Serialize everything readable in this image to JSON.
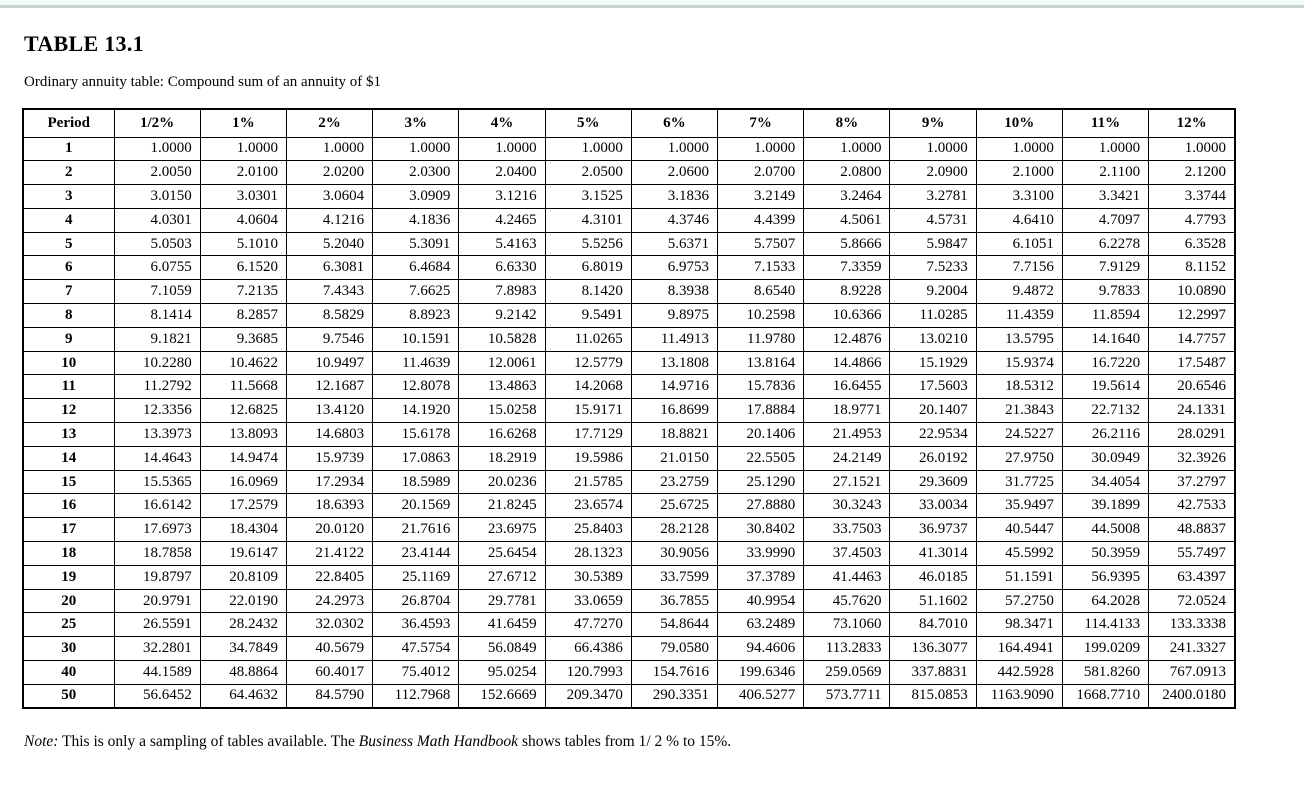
{
  "theme": {
    "accent_bar_color": "#f1fbf7",
    "accent_line_color": "#c3d2ce",
    "text_color": "#000000"
  },
  "page": {
    "title": "TABLE 13.1",
    "subtitle": "Ordinary annuity table: Compound sum of an annuity of $1",
    "note_label": "Note:",
    "note_text_1": " This is only a sampling of tables available. The ",
    "note_italic": "Business Math Handbook",
    "note_text_2": " shows tables from 1/ 2 % to 15%."
  },
  "table": {
    "headers": [
      "Period",
      "1/2%",
      "1%",
      "2%",
      "3%",
      "4%",
      "5%",
      "6%",
      "7%",
      "8%",
      "9%",
      "10%",
      "11%",
      "12%"
    ],
    "rows": [
      [
        "1",
        "1.0000",
        "1.0000",
        "1.0000",
        "1.0000",
        "1.0000",
        "1.0000",
        "1.0000",
        "1.0000",
        "1.0000",
        "1.0000",
        "1.0000",
        "1.0000",
        "1.0000"
      ],
      [
        "2",
        "2.0050",
        "2.0100",
        "2.0200",
        "2.0300",
        "2.0400",
        "2.0500",
        "2.0600",
        "2.0700",
        "2.0800",
        "2.0900",
        "2.1000",
        "2.1100",
        "2.1200"
      ],
      [
        "3",
        "3.0150",
        "3.0301",
        "3.0604",
        "3.0909",
        "3.1216",
        "3.1525",
        "3.1836",
        "3.2149",
        "3.2464",
        "3.2781",
        "3.3100",
        "3.3421",
        "3.3744"
      ],
      [
        "4",
        "4.0301",
        "4.0604",
        "4.1216",
        "4.1836",
        "4.2465",
        "4.3101",
        "4.3746",
        "4.4399",
        "4.5061",
        "4.5731",
        "4.6410",
        "4.7097",
        "4.7793"
      ],
      [
        "5",
        "5.0503",
        "5.1010",
        "5.2040",
        "5.3091",
        "5.4163",
        "5.5256",
        "5.6371",
        "5.7507",
        "5.8666",
        "5.9847",
        "6.1051",
        "6.2278",
        "6.3528"
      ],
      [
        "6",
        "6.0755",
        "6.1520",
        "6.3081",
        "6.4684",
        "6.6330",
        "6.8019",
        "6.9753",
        "7.1533",
        "7.3359",
        "7.5233",
        "7.7156",
        "7.9129",
        "8.1152"
      ],
      [
        "7",
        "7.1059",
        "7.2135",
        "7.4343",
        "7.6625",
        "7.8983",
        "8.1420",
        "8.3938",
        "8.6540",
        "8.9228",
        "9.2004",
        "9.4872",
        "9.7833",
        "10.0890"
      ],
      [
        "8",
        "8.1414",
        "8.2857",
        "8.5829",
        "8.8923",
        "9.2142",
        "9.5491",
        "9.8975",
        "10.2598",
        "10.6366",
        "11.0285",
        "11.4359",
        "11.8594",
        "12.2997"
      ],
      [
        "9",
        "9.1821",
        "9.3685",
        "9.7546",
        "10.1591",
        "10.5828",
        "11.0265",
        "11.4913",
        "11.9780",
        "12.4876",
        "13.0210",
        "13.5795",
        "14.1640",
        "14.7757"
      ],
      [
        "10",
        "10.2280",
        "10.4622",
        "10.9497",
        "11.4639",
        "12.0061",
        "12.5779",
        "13.1808",
        "13.8164",
        "14.4866",
        "15.1929",
        "15.9374",
        "16.7220",
        "17.5487"
      ],
      [
        "11",
        "11.2792",
        "11.5668",
        "12.1687",
        "12.8078",
        "13.4863",
        "14.2068",
        "14.9716",
        "15.7836",
        "16.6455",
        "17.5603",
        "18.5312",
        "19.5614",
        "20.6546"
      ],
      [
        "12",
        "12.3356",
        "12.6825",
        "13.4120",
        "14.1920",
        "15.0258",
        "15.9171",
        "16.8699",
        "17.8884",
        "18.9771",
        "20.1407",
        "21.3843",
        "22.7132",
        "24.1331"
      ],
      [
        "13",
        "13.3973",
        "13.8093",
        "14.6803",
        "15.6178",
        "16.6268",
        "17.7129",
        "18.8821",
        "20.1406",
        "21.4953",
        "22.9534",
        "24.5227",
        "26.2116",
        "28.0291"
      ],
      [
        "14",
        "14.4643",
        "14.9474",
        "15.9739",
        "17.0863",
        "18.2919",
        "19.5986",
        "21.0150",
        "22.5505",
        "24.2149",
        "26.0192",
        "27.9750",
        "30.0949",
        "32.3926"
      ],
      [
        "15",
        "15.5365",
        "16.0969",
        "17.2934",
        "18.5989",
        "20.0236",
        "21.5785",
        "23.2759",
        "25.1290",
        "27.1521",
        "29.3609",
        "31.7725",
        "34.4054",
        "37.2797"
      ],
      [
        "16",
        "16.6142",
        "17.2579",
        "18.6393",
        "20.1569",
        "21.8245",
        "23.6574",
        "25.6725",
        "27.8880",
        "30.3243",
        "33.0034",
        "35.9497",
        "39.1899",
        "42.7533"
      ],
      [
        "17",
        "17.6973",
        "18.4304",
        "20.0120",
        "21.7616",
        "23.6975",
        "25.8403",
        "28.2128",
        "30.8402",
        "33.7503",
        "36.9737",
        "40.5447",
        "44.5008",
        "48.8837"
      ],
      [
        "18",
        "18.7858",
        "19.6147",
        "21.4122",
        "23.4144",
        "25.6454",
        "28.1323",
        "30.9056",
        "33.9990",
        "37.4503",
        "41.3014",
        "45.5992",
        "50.3959",
        "55.7497"
      ],
      [
        "19",
        "19.8797",
        "20.8109",
        "22.8405",
        "25.1169",
        "27.6712",
        "30.5389",
        "33.7599",
        "37.3789",
        "41.4463",
        "46.0185",
        "51.1591",
        "56.9395",
        "63.4397"
      ],
      [
        "20",
        "20.9791",
        "22.0190",
        "24.2973",
        "26.8704",
        "29.7781",
        "33.0659",
        "36.7855",
        "40.9954",
        "45.7620",
        "51.1602",
        "57.2750",
        "64.2028",
        "72.0524"
      ],
      [
        "25",
        "26.5591",
        "28.2432",
        "32.0302",
        "36.4593",
        "41.6459",
        "47.7270",
        "54.8644",
        "63.2489",
        "73.1060",
        "84.7010",
        "98.3471",
        "114.4133",
        "133.3338"
      ],
      [
        "30",
        "32.2801",
        "34.7849",
        "40.5679",
        "47.5754",
        "56.0849",
        "66.4386",
        "79.0580",
        "94.4606",
        "113.2833",
        "136.3077",
        "164.4941",
        "199.0209",
        "241.3327"
      ],
      [
        "40",
        "44.1589",
        "48.8864",
        "60.4017",
        "75.4012",
        "95.0254",
        "120.7993",
        "154.7616",
        "199.6346",
        "259.0569",
        "337.8831",
        "442.5928",
        "581.8260",
        "767.0913"
      ],
      [
        "50",
        "56.6452",
        "64.4632",
        "84.5790",
        "112.7968",
        "152.6669",
        "209.3470",
        "290.3351",
        "406.5277",
        "573.7711",
        "815.0853",
        "1163.9090",
        "1668.7710",
        "2400.0180"
      ]
    ]
  }
}
